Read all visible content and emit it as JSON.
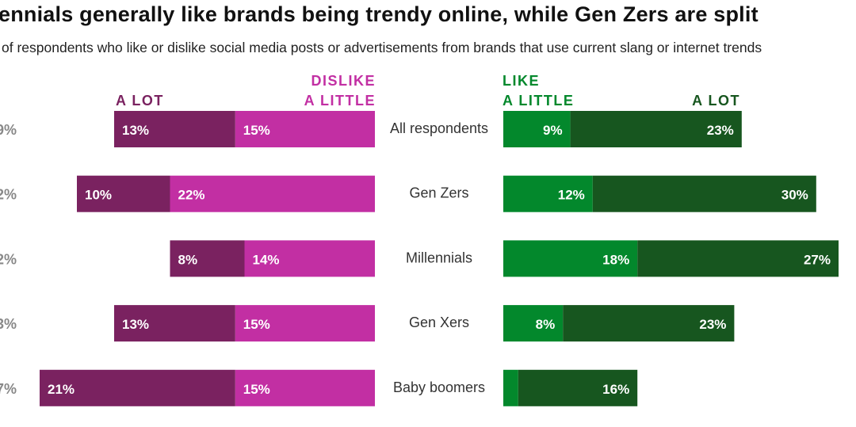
{
  "chart_data": {
    "type": "bar",
    "title": "ennials generally like brands being trendy online, while Gen Zers are split",
    "subtitle": "of respondents who like or dislike social media posts or advertisements from brands that use current slang or internet trends",
    "categories": [
      "All respondents",
      "Gen Zers",
      "Millennials",
      "Gen Xers",
      "Baby boomers"
    ],
    "left_totals": [
      "9%",
      "2%",
      "2%",
      "3%",
      "7%"
    ],
    "headers": {
      "dislike_a_lot": "A LOT",
      "dislike_a_little_1": "DISLIKE",
      "dislike_a_little_2": "A LITTLE",
      "like_a_little_1": "LIKE",
      "like_a_little_2": "A LITTLE",
      "like_a_lot": "A LOT"
    },
    "series": [
      {
        "name": "Dislike a lot",
        "color": "#7a2260",
        "values": [
          13,
          10,
          8,
          13,
          21
        ],
        "labels": [
          "13%",
          "10%",
          "8%",
          "13%",
          "21%"
        ]
      },
      {
        "name": "Dislike a little",
        "color": "#c22fa3",
        "values": [
          15,
          22,
          14,
          15,
          15
        ],
        "labels": [
          "15%",
          "22%",
          "14%",
          "15%",
          "15%"
        ]
      },
      {
        "name": "Like a little",
        "color": "#03882c",
        "values": [
          9,
          12,
          18,
          8,
          2
        ],
        "labels": [
          "9%",
          "12%",
          "18%",
          "8%",
          ""
        ]
      },
      {
        "name": "Like a lot",
        "color": "#17561f",
        "values": [
          23,
          30,
          27,
          23,
          16
        ],
        "labels": [
          "23%",
          "30%",
          "27%",
          "23%",
          "16%"
        ]
      }
    ]
  }
}
